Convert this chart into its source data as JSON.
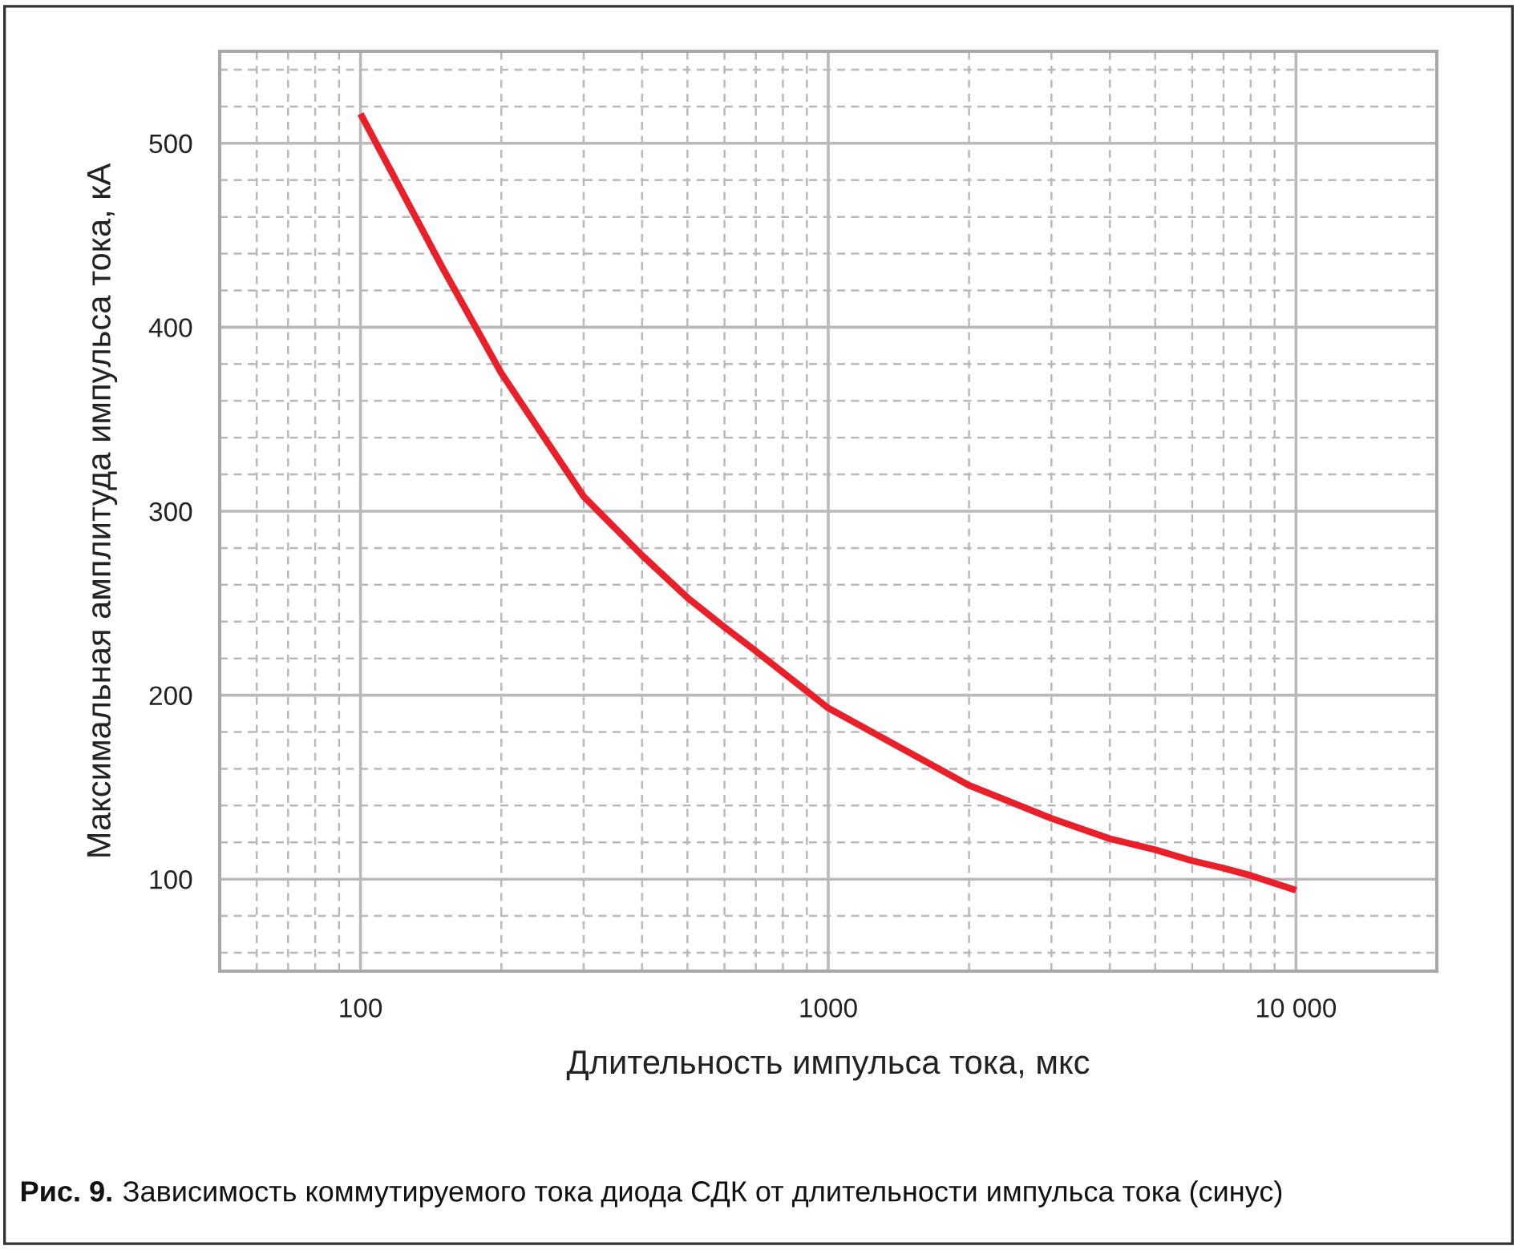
{
  "chart_data": {
    "type": "line",
    "xlabel": "Длительность импульса тока, мкс",
    "ylabel": "Максимальная амплитуда импульса тока, кА",
    "annotations": [
      "Рис. 9.",
      "Зависимость коммутируемого тока диода СДК от длительности импульса тока (синус)"
    ],
    "log": "x",
    "grid": true,
    "line_style": "solid",
    "marker": "none",
    "xlim": [
      50,
      20000
    ],
    "ylim": [
      50,
      550
    ],
    "xticks": [
      {
        "value": 60,
        "label": null
      },
      {
        "value": 70,
        "label": null
      },
      {
        "value": 80,
        "label": null
      },
      {
        "value": 90,
        "label": null
      },
      100,
      {
        "value": 200,
        "label": null
      },
      {
        "value": 300,
        "label": null
      },
      {
        "value": 400,
        "label": null
      },
      {
        "value": 500,
        "label": null
      },
      {
        "value": 600,
        "label": null
      },
      {
        "value": 700,
        "label": null
      },
      {
        "value": 800,
        "label": null
      },
      {
        "value": 900,
        "label": null
      },
      1000,
      {
        "value": 2000,
        "label": null
      },
      {
        "value": 3000,
        "label": null
      },
      {
        "value": 4000,
        "label": null
      },
      {
        "value": 5000,
        "label": null
      },
      {
        "value": 6000,
        "label": null
      },
      {
        "value": 7000,
        "label": null
      },
      {
        "value": 8000,
        "label": null
      },
      {
        "value": 9000,
        "label": null
      },
      {
        "value": 10000,
        "label": "10 000"
      }
    ],
    "yticks": [
      {
        "value": 60,
        "label": null
      },
      {
        "value": 80,
        "label": null
      },
      100,
      {
        "value": 120,
        "label": null
      },
      {
        "value": 140,
        "label": null
      },
      {
        "value": 160,
        "label": null
      },
      {
        "value": 180,
        "label": null
      },
      200,
      {
        "value": 220,
        "label": null
      },
      {
        "value": 240,
        "label": null
      },
      {
        "value": 260,
        "label": null
      },
      {
        "value": 280,
        "label": null
      },
      300,
      {
        "value": 320,
        "label": null
      },
      {
        "value": 340,
        "label": null
      },
      {
        "value": 360,
        "label": null
      },
      {
        "value": 380,
        "label": null
      },
      400,
      {
        "value": 420,
        "label": null
      },
      {
        "value": 440,
        "label": null
      },
      {
        "value": 460,
        "label": null
      },
      {
        "value": 480,
        "label": null
      },
      500,
      {
        "value": 520,
        "label": null
      },
      {
        "value": 540,
        "label": null
      }
    ],
    "x": [
      100,
      150,
      200,
      300,
      400,
      500,
      600,
      700,
      1000,
      2000,
      3000,
      4000,
      5000,
      6000,
      7000,
      8000,
      10000
    ],
    "series": [
      {
        "color": "#e8202a",
        "values": [
          516,
          432,
          375,
          308,
          276,
          253,
          237,
          224,
          193,
          151,
          133,
          122,
          116,
          110,
          106,
          102,
          94
        ]
      }
    ]
  }
}
